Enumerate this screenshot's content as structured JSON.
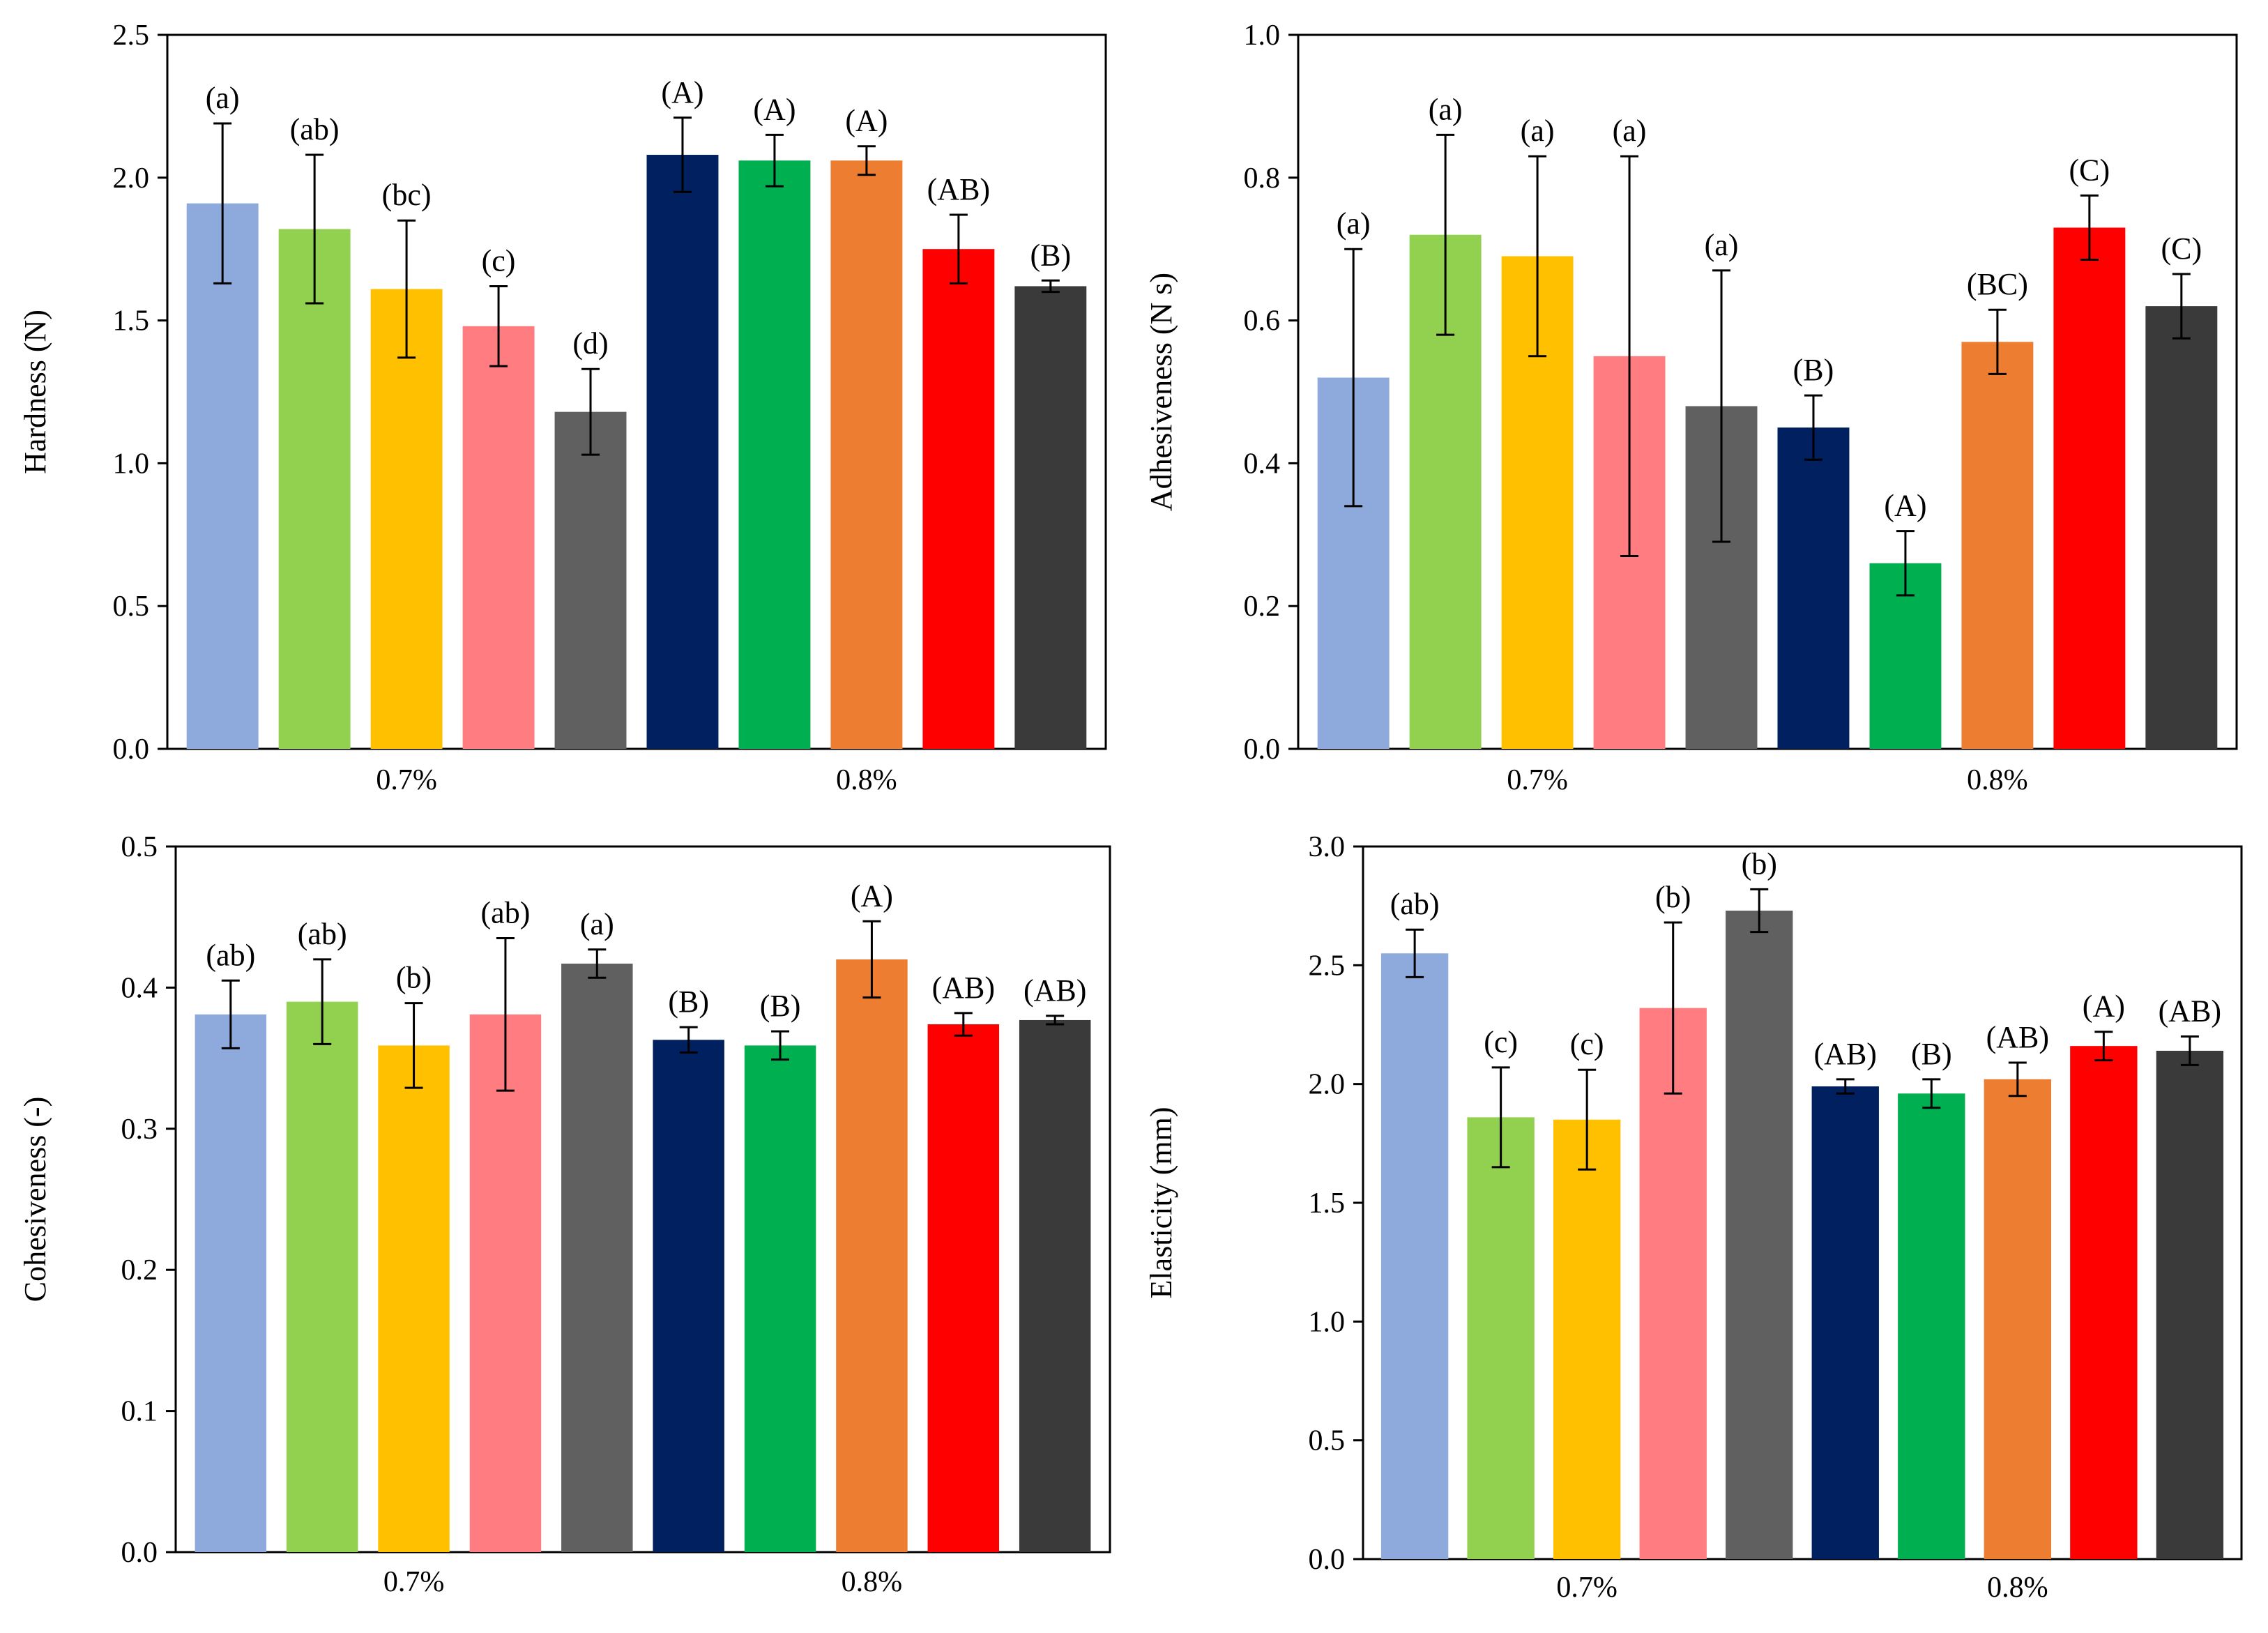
{
  "figure": {
    "bar_colors": [
      "#8EA9DB",
      "#92D050",
      "#FFC000",
      "#FF7C80",
      "#606060",
      "#002060",
      "#00B050",
      "#ED7D31",
      "#FF0000",
      "#3A3A3A"
    ]
  },
  "chart_data": [
    {
      "type": "bar",
      "ylabel": "Hardness (N)",
      "ylim": [
        0,
        2.5
      ],
      "yticks": [
        "0.0",
        "0.5",
        "1.0",
        "1.5",
        "2.0",
        "2.5"
      ],
      "groups": [
        "0.7%",
        "0.8%"
      ],
      "values": [
        1.91,
        1.82,
        1.61,
        1.48,
        1.18,
        2.08,
        2.06,
        2.06,
        1.75,
        1.62
      ],
      "errors": [
        0.28,
        0.26,
        0.24,
        0.14,
        0.15,
        0.13,
        0.09,
        0.05,
        0.12,
        0.02
      ],
      "labels": [
        "(a)",
        "(ab)",
        "(bc)",
        "(c)",
        "(d)",
        "(A)",
        "(A)",
        "(A)",
        "(AB)",
        "(B)"
      ]
    },
    {
      "type": "bar",
      "ylabel": "Adhesiveness (N s)",
      "ylim": [
        0,
        1.0
      ],
      "yticks": [
        "0.0",
        "0.2",
        "0.4",
        "0.6",
        "0.8",
        "1.0"
      ],
      "groups": [
        "0.7%",
        "0.8%"
      ],
      "values": [
        0.52,
        0.72,
        0.69,
        0.55,
        0.48,
        0.45,
        0.26,
        0.57,
        0.73,
        0.62
      ],
      "errors": [
        0.18,
        0.14,
        0.14,
        0.28,
        0.19,
        0.045,
        0.045,
        0.045,
        0.045,
        0.045
      ],
      "labels": [
        "(a)",
        "(a)",
        "(a)",
        "(a)",
        "(a)",
        "(B)",
        "(A)",
        "(BC)",
        "(C)",
        "(C)"
      ]
    },
    {
      "type": "bar",
      "ylabel": "Cohesiveness (-)",
      "ylim": [
        0,
        0.5
      ],
      "yticks": [
        "0.0",
        "0.1",
        "0.2",
        "0.3",
        "0.4",
        "0.5"
      ],
      "groups": [
        "0.7%",
        "0.8%"
      ],
      "values": [
        0.381,
        0.39,
        0.359,
        0.381,
        0.417,
        0.363,
        0.359,
        0.42,
        0.374,
        0.377
      ],
      "errors": [
        0.024,
        0.03,
        0.03,
        0.054,
        0.01,
        0.009,
        0.01,
        0.027,
        0.008,
        0.003
      ],
      "labels": [
        "(ab)",
        "(ab)",
        "(b)",
        "(ab)",
        "(a)",
        "(B)",
        "(B)",
        "(A)",
        "(AB)",
        "(AB)"
      ]
    },
    {
      "type": "bar",
      "ylabel": "Elasticity (mm)",
      "ylim": [
        0,
        3.0
      ],
      "yticks": [
        "0.0",
        "0.5",
        "1.0",
        "1.5",
        "2.0",
        "2.5",
        "3.0"
      ],
      "groups": [
        "0.7%",
        "0.8%"
      ],
      "values": [
        2.55,
        1.86,
        1.85,
        2.32,
        2.73,
        1.99,
        1.96,
        2.02,
        2.16,
        2.14
      ],
      "errors": [
        0.1,
        0.21,
        0.21,
        0.36,
        0.09,
        0.03,
        0.06,
        0.07,
        0.06,
        0.06
      ],
      "labels": [
        "(ab)",
        "(c)",
        "(c)",
        "(b)",
        "(b)",
        "(AB)",
        "(B)",
        "(AB)",
        "(A)",
        "(AB)"
      ]
    }
  ]
}
